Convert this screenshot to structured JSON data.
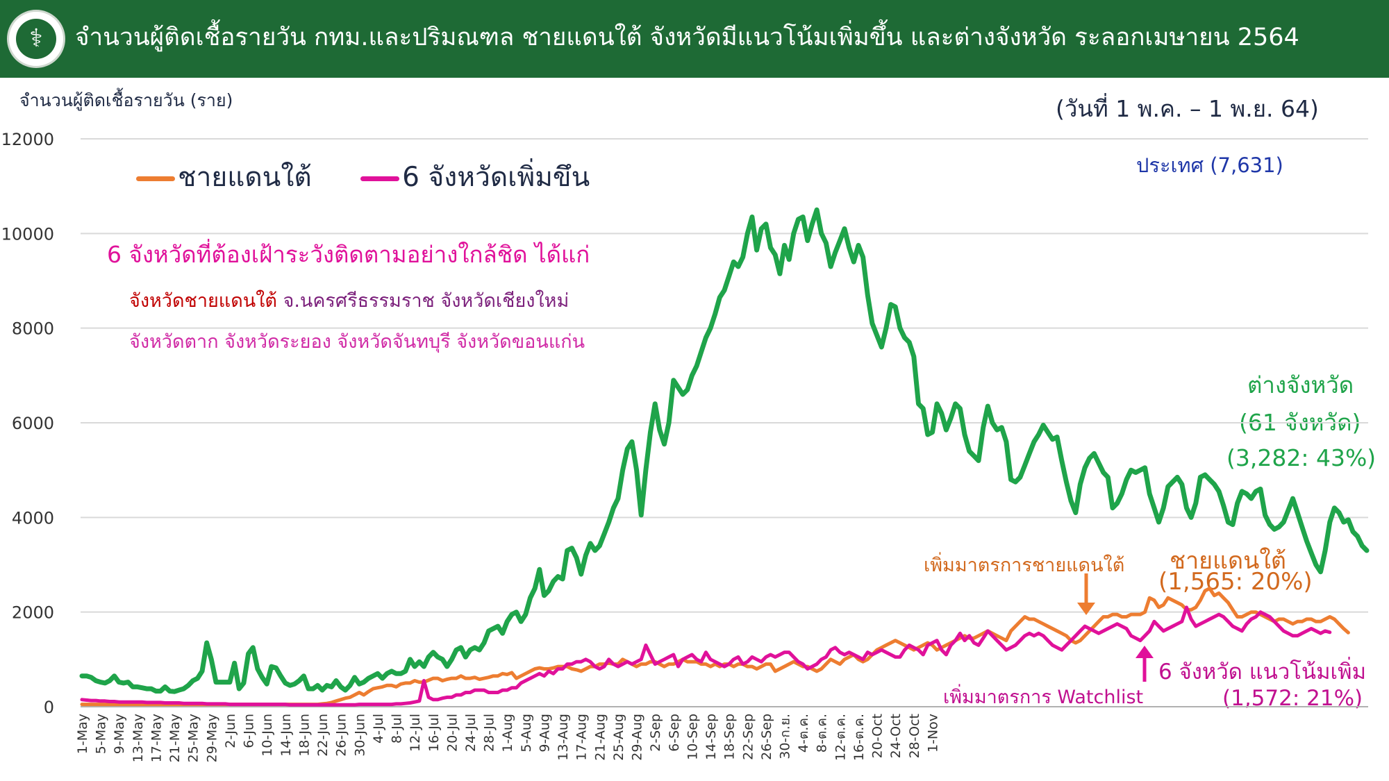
{
  "header": {
    "title": "จำนวนผู้ติดเชื้อรายวัน กทม.และปริมณฑล ชายแดนใต้ จังหวัดมีแนวโน้มเพิ่มขึ้น และต่างจังหวัด ระลอกเมษายน 2564",
    "background": "#1e6a35"
  },
  "y_axis_label": "จำนวนผู้ติดเชื้อรายวัน (ราย)",
  "date_range": "(วันที่ 1 พ.ค. – 1 พ.ย. 64)",
  "legend": [
    {
      "name": "ชายแดนใต้",
      "color": "#ed7d31"
    },
    {
      "name": "6 จังหวัดเพิ่มขึน",
      "color": "#e0119a"
    }
  ],
  "note": {
    "line1": "6 จังหวัดที่ต้องเฝ้าระวังติดตามอย่างใกล้ชิด  ได้แก่",
    "line2_red": "จังหวัดชายแดนใต้",
    "line2_rest": " จ.นครศรีธรรมราช จังหวัดเชียงใหม่",
    "line3": "จังหวัดตาก จังหวัดระยอง จังหวัดจันทบุรี จังหวัดขอนแก่น",
    "red_color": "#c00000",
    "dark_color": "#7b1f7b"
  },
  "annotations": {
    "country": "ประเทศ (7,631)",
    "upcountry_1": "ต่างจังหวัด",
    "upcountry_2": "(61 จังหวัด)",
    "upcountry_3": "(3,282: 43%)",
    "south_measure": "เพิ่มมาตรการชายแดนใต้",
    "south_1": "ชายแดนใต้",
    "south_2": "(1,565: 20%)",
    "watchlist_measure": "เพิ่มมาตรการ Watchlist",
    "six_1": "6 จังหวัด แนวโน้มเพิ่ม",
    "six_2": "(1,572: 21%)"
  },
  "chart_data": {
    "type": "line",
    "x_start": "1-May",
    "x_end": "1-Nov",
    "tick_labels": [
      "1-May",
      "5-May",
      "9-May",
      "13-May",
      "17-May",
      "21-May",
      "25-May",
      "29-May",
      "2-Jun",
      "6-Jun",
      "10-Jun",
      "14-Jun",
      "18-Jun",
      "22-Jun",
      "26-Jun",
      "30-Jun",
      "4-Jul",
      "8-Jul",
      "12-Jul",
      "16-Jul",
      "20-Jul",
      "24-Jul",
      "28-Jul",
      "1-Aug",
      "5-Aug",
      "9-Aug",
      "13-Aug",
      "17-Aug",
      "21-Aug",
      "25-Aug",
      "29-Aug",
      "2-Sep",
      "6-Sep",
      "10-Sep",
      "14-Sep",
      "18-Sep",
      "22-Sep",
      "26-Sep",
      "30-ก.ย.",
      "4-ต.ค.",
      "8-ต.ค.",
      "12-ต.ค.",
      "16-ต.ค.",
      "20-Oct",
      "24-Oct",
      "28-Oct",
      "1-Nov"
    ],
    "y_ticks": [
      "0",
      "2000",
      "4000",
      "6000",
      "8000",
      "10000",
      "12000"
    ],
    "ylim": [
      0,
      12000
    ],
    "grid": true,
    "series": [
      {
        "color": "#1fa44a",
        "values": [
          650,
          650,
          620,
          550,
          520,
          500,
          550,
          650,
          520,
          500,
          520,
          420,
          420,
          400,
          380,
          380,
          330,
          330,
          420,
          330,
          320,
          350,
          380,
          450,
          550,
          600,
          750,
          1350,
          1000,
          520,
          520,
          520,
          520,
          920,
          380,
          500,
          1120,
          1250,
          800,
          620,
          480,
          850,
          820,
          650,
          500,
          450,
          480,
          550,
          650,
          380,
          380,
          450,
          350,
          450,
          420,
          550,
          420,
          350,
          450,
          620,
          480,
          520,
          600,
          650,
          700,
          600,
          700,
          750,
          700,
          700,
          750,
          1000,
          850,
          950,
          850,
          1050,
          1150,
          1050,
          1000,
          850,
          1000,
          1200,
          1250,
          1050,
          1200,
          1250,
          1200,
          1350,
          1600,
          1650,
          1700,
          1550,
          1800,
          1950,
          2000,
          1800,
          1950,
          2300,
          2500,
          2900,
          2350,
          2450,
          2650,
          2750,
          2700,
          3300,
          3350,
          3150,
          2800,
          3200,
          3450,
          3300,
          3400,
          3650,
          3900,
          4200,
          4400,
          5000,
          5450,
          5600,
          5000,
          4050,
          5000,
          5800,
          6400,
          5850,
          5550,
          6000,
          6900,
          6750,
          6600,
          6700,
          7000,
          7200,
          7500,
          7800,
          8000,
          8300,
          8650,
          8800,
          9100,
          9400,
          9300,
          9500,
          10000,
          10350,
          9650,
          10100,
          10200,
          9700,
          9550,
          9150,
          9750,
          9450,
          10000,
          10300,
          10350,
          9850,
          10200,
          10500,
          10000,
          9800,
          9300,
          9600,
          9850,
          10100,
          9700,
          9400,
          9750,
          9500,
          8700,
          8100,
          7850,
          7600,
          8000,
          8500,
          8450,
          8000,
          7800,
          7700,
          7400,
          6400,
          6300,
          5750,
          5800,
          6400,
          6200,
          5850,
          6100,
          6400,
          6300,
          5750,
          5400,
          5300,
          5200,
          5900,
          6350,
          6000,
          5850,
          5900,
          5600,
          4800,
          4750,
          4850,
          5100,
          5350,
          5600,
          5750,
          5950,
          5800,
          5650,
          5700,
          5200,
          4750,
          4350,
          4100,
          4700,
          5050,
          5250,
          5350,
          5150,
          4950,
          4850,
          4200,
          4300,
          4500,
          4800,
          5000,
          4950,
          5000,
          5050,
          4500,
          4200,
          3900,
          4200,
          4650,
          4750,
          4850,
          4700,
          4200,
          4000,
          4300,
          4850,
          4900,
          4800,
          4700,
          4550,
          4250,
          3900,
          3850,
          4300,
          4550,
          4500,
          4400,
          4550,
          4600,
          4050,
          3850,
          3750,
          3800,
          3900,
          4150,
          4400,
          4100,
          3800,
          3500,
          3250,
          3000,
          2850,
          3300,
          3900,
          4200,
          4100,
          3900,
          3950,
          3700,
          3600,
          3400,
          3300
        ]
      },
      {
        "name": "ชายแดนใต้",
        "color": "#ed7d31",
        "values": [
          50,
          50,
          50,
          50,
          50,
          50,
          50,
          50,
          50,
          50,
          50,
          50,
          50,
          50,
          50,
          50,
          50,
          50,
          50,
          50,
          50,
          50,
          50,
          50,
          50,
          50,
          50,
          50,
          50,
          50,
          50,
          50,
          50,
          50,
          50,
          50,
          50,
          50,
          50,
          50,
          50,
          50,
          50,
          50,
          50,
          50,
          50,
          50,
          50,
          50,
          50,
          50,
          60,
          70,
          90,
          120,
          150,
          180,
          200,
          250,
          300,
          250,
          320,
          380,
          400,
          420,
          450,
          450,
          420,
          480,
          500,
          500,
          550,
          520,
          520,
          560,
          600,
          600,
          550,
          580,
          600,
          600,
          650,
          600,
          600,
          620,
          580,
          600,
          620,
          650,
          650,
          700,
          680,
          720,
          600,
          650,
          700,
          750,
          800,
          820,
          800,
          800,
          820,
          850,
          850,
          850,
          800,
          780,
          750,
          800,
          850,
          850,
          900,
          900,
          920,
          900,
          900,
          1000,
          950,
          900,
          850,
          900,
          900,
          950,
          950,
          900,
          850,
          900,
          900,
          950,
          1000,
          950,
          950,
          950,
          900,
          900,
          850,
          900,
          850,
          900,
          900,
          850,
          900,
          900,
          850,
          850,
          800,
          850,
          900,
          900,
          750,
          800,
          850,
          900,
          950,
          900,
          850,
          850,
          800,
          750,
          800,
          900,
          1000,
          950,
          900,
          1000,
          1050,
          1100,
          1000,
          950,
          1000,
          1100,
          1200,
          1250,
          1300,
          1350,
          1400,
          1350,
          1300,
          1250,
          1200,
          1250,
          1300,
          1350,
          1300,
          1200,
          1250,
          1300,
          1350,
          1400,
          1450,
          1500,
          1450,
          1450,
          1500,
          1550,
          1600,
          1550,
          1500,
          1450,
          1400,
          1600,
          1700,
          1800,
          1900,
          1850,
          1850,
          1800,
          1750,
          1700,
          1650,
          1600,
          1550,
          1500,
          1400,
          1350,
          1400,
          1500,
          1600,
          1700,
          1800,
          1900,
          1900,
          1950,
          1950,
          1900,
          1900,
          1950,
          1950,
          1950,
          2000,
          2300,
          2250,
          2100,
          2150,
          2300,
          2250,
          2200,
          2150,
          2050,
          2050,
          2100,
          2250,
          2450,
          2500,
          2350,
          2400,
          2300,
          2200,
          2050,
          1900,
          1900,
          1950,
          2000,
          2000,
          1950,
          1900,
          1850,
          1800,
          1850,
          1850,
          1800,
          1750,
          1800,
          1800,
          1850,
          1850,
          1800,
          1800,
          1850,
          1900,
          1850,
          1750,
          1650,
          1565
        ]
      },
      {
        "name": "6 จังหวัดเพิ่มขึน",
        "color": "#e0119a",
        "values": [
          150,
          140,
          130,
          130,
          120,
          120,
          110,
          110,
          100,
          100,
          100,
          100,
          100,
          100,
          90,
          90,
          90,
          90,
          80,
          80,
          80,
          80,
          70,
          70,
          70,
          70,
          70,
          60,
          60,
          60,
          60,
          60,
          50,
          50,
          50,
          50,
          50,
          50,
          50,
          50,
          50,
          50,
          50,
          50,
          50,
          40,
          40,
          40,
          40,
          40,
          40,
          40,
          40,
          40,
          40,
          40,
          40,
          40,
          40,
          40,
          50,
          50,
          50,
          50,
          50,
          50,
          50,
          50,
          60,
          60,
          70,
          80,
          100,
          120,
          550,
          200,
          150,
          150,
          180,
          200,
          200,
          250,
          250,
          300,
          300,
          350,
          350,
          350,
          300,
          300,
          300,
          350,
          350,
          400,
          400,
          500,
          550,
          600,
          650,
          700,
          650,
          750,
          700,
          800,
          800,
          900,
          900,
          950,
          950,
          1000,
          950,
          850,
          800,
          850,
          1000,
          900,
          850,
          900,
          950,
          900,
          950,
          1000,
          1300,
          1100,
          900,
          950,
          1000,
          1050,
          1100,
          850,
          1000,
          1050,
          1100,
          1000,
          950,
          1150,
          1000,
          950,
          900,
          850,
          900,
          1000,
          1050,
          900,
          950,
          1050,
          1000,
          950,
          1050,
          1100,
          1050,
          1100,
          1150,
          1150,
          1050,
          950,
          900,
          800,
          850,
          900,
          1000,
          1050,
          1200,
          1250,
          1150,
          1100,
          1150,
          1100,
          1050,
          1000,
          1150,
          1100,
          1150,
          1200,
          1150,
          1100,
          1050,
          1050,
          1200,
          1300,
          1250,
          1200,
          1100,
          1300,
          1350,
          1400,
          1200,
          1100,
          1300,
          1400,
          1550,
          1400,
          1500,
          1350,
          1300,
          1450,
          1600,
          1500,
          1400,
          1300,
          1200,
          1250,
          1300,
          1400,
          1500,
          1550,
          1500,
          1550,
          1500,
          1400,
          1300,
          1250,
          1200,
          1300,
          1400,
          1500,
          1600,
          1700,
          1650,
          1600,
          1550,
          1600,
          1650,
          1700,
          1750,
          1700,
          1650,
          1500,
          1450,
          1400,
          1500,
          1600,
          1800,
          1700,
          1600,
          1650,
          1700,
          1750,
          1800,
          2100,
          1850,
          1700,
          1750,
          1800,
          1850,
          1900,
          1950,
          1900,
          1800,
          1700,
          1650,
          1600,
          1750,
          1850,
          1900,
          2000,
          1950,
          1900,
          1800,
          1700,
          1600,
          1550,
          1500,
          1500,
          1550,
          1600,
          1650,
          1600,
          1550,
          1600,
          1572
        ]
      }
    ]
  }
}
